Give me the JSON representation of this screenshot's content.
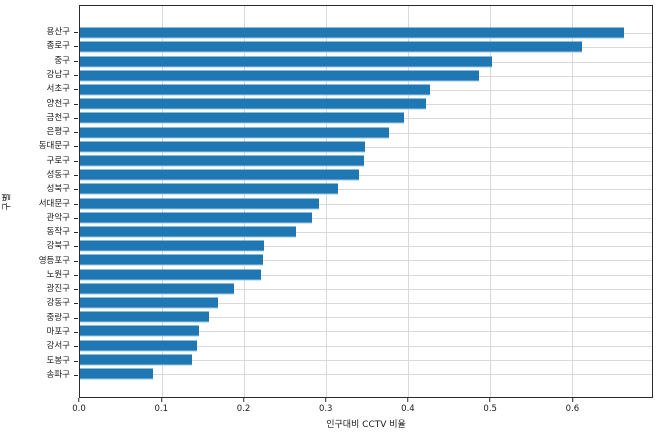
{
  "chart_data": {
    "type": "bar",
    "orientation": "horizontal",
    "title": "",
    "xlabel": "인구대비 CCTV 비율",
    "ylabel": "구별",
    "categories": [
      "용산구",
      "종로구",
      "중구",
      "강남구",
      "서초구",
      "양천구",
      "금천구",
      "은평구",
      "동대문구",
      "구로구",
      "성동구",
      "성북구",
      "서대문구",
      "관악구",
      "동작구",
      "강북구",
      "영등포구",
      "노원구",
      "광진구",
      "강동구",
      "중랑구",
      "마포구",
      "강서구",
      "도봉구",
      "송파구"
    ],
    "values": [
      0.664,
      0.613,
      0.503,
      0.487,
      0.427,
      0.422,
      0.395,
      0.377,
      0.348,
      0.346,
      0.34,
      0.315,
      0.292,
      0.283,
      0.264,
      0.225,
      0.223,
      0.221,
      0.188,
      0.169,
      0.158,
      0.145,
      0.143,
      0.137,
      0.089
    ],
    "xlim": [
      0,
      0.698
    ],
    "xticks": [
      0.0,
      0.1,
      0.2,
      0.3,
      0.4,
      0.5,
      0.6
    ],
    "xtick_labels": [
      "0.0",
      "0.1",
      "0.2",
      "0.3",
      "0.4",
      "0.5",
      "0.6"
    ],
    "bar_color": "#1f77b4",
    "grid": true,
    "grid_color": "#d9d9d9",
    "legend": false
  }
}
